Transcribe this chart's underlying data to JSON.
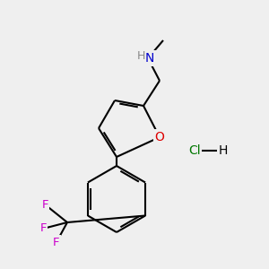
{
  "background_color": "#efefef",
  "atom_colors": {
    "N": "#0000cc",
    "O": "#dd0000",
    "F": "#cc00cc",
    "Cl": "#007700",
    "C": "#000000",
    "H": "#888888"
  },
  "figsize": [
    3.0,
    3.0
  ],
  "dpi": 100,
  "lw": 1.5,
  "fs": 10.0
}
